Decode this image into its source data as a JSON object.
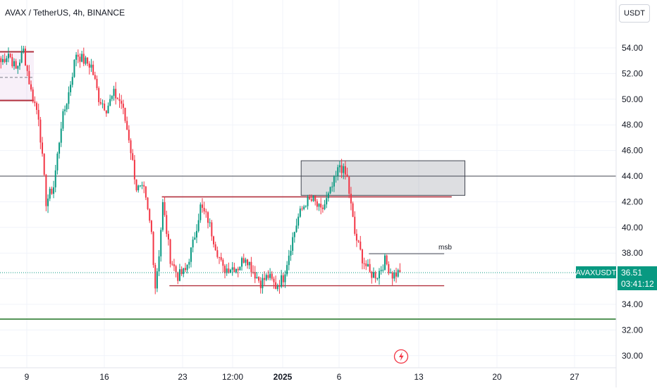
{
  "header": {
    "title": "AVAX / TetherUS, 4h, BINANCE",
    "currency_button": "USDT"
  },
  "price_tag": {
    "symbol": "AVAXUSDT",
    "price": "36.51",
    "countdown": "03:41:12",
    "color": "#089981"
  },
  "annotation": {
    "label": "msb"
  },
  "icons": {
    "event_marker": "lightning-bolt-icon"
  },
  "colors": {
    "up": "#089981",
    "down": "#f23645",
    "zone_line": "#b2323f",
    "horizontal": "#434651",
    "support": "#2e7d32",
    "grid": "#f0f3fa"
  },
  "chart_data": {
    "type": "candlestick",
    "symbol": "AVAXUSDT",
    "interval": "4h",
    "exchange": "BINANCE",
    "y_axis": {
      "range": [
        29.4,
        56.8
      ],
      "ticks": [
        "54.00",
        "52.00",
        "50.00",
        "48.00",
        "46.00",
        "44.00",
        "42.00",
        "40.00",
        "38.00",
        "36.00",
        "34.00",
        "32.00",
        "30.00"
      ]
    },
    "x_axis": {
      "tick_labels": [
        "9",
        "16",
        "23",
        "12:00",
        "2025",
        "6",
        "13",
        "20",
        "27"
      ]
    },
    "close_path": [
      [
        0,
        52.9
      ],
      [
        4,
        53.6
      ],
      [
        8,
        52.3
      ],
      [
        12,
        53.8
      ],
      [
        16,
        50.6
      ],
      [
        20,
        48.7
      ],
      [
        24,
        42.0
      ],
      [
        28,
        43.2
      ],
      [
        32,
        48.0
      ],
      [
        36,
        50.5
      ],
      [
        40,
        53.6
      ],
      [
        44,
        53.0
      ],
      [
        48,
        52.6
      ],
      [
        52,
        50.1
      ],
      [
        56,
        49.3
      ],
      [
        60,
        50.4
      ],
      [
        64,
        49.7
      ],
      [
        68,
        47.0
      ],
      [
        72,
        43.1
      ],
      [
        76,
        42.8
      ],
      [
        80,
        39.6
      ],
      [
        82,
        35.4
      ],
      [
        84,
        38.0
      ],
      [
        86,
        41.8
      ],
      [
        90,
        37.6
      ],
      [
        94,
        36.2
      ],
      [
        98,
        36.6
      ],
      [
        102,
        38.7
      ],
      [
        106,
        41.6
      ],
      [
        110,
        40.6
      ],
      [
        114,
        38.6
      ],
      [
        118,
        36.7
      ],
      [
        122,
        36.9
      ],
      [
        126,
        36.9
      ],
      [
        130,
        37.8
      ],
      [
        134,
        36.6
      ],
      [
        138,
        35.7
      ],
      [
        142,
        36.2
      ],
      [
        146,
        35.4
      ],
      [
        150,
        36.1
      ],
      [
        154,
        38.6
      ],
      [
        158,
        40.8
      ],
      [
        162,
        42.0
      ],
      [
        166,
        42.1
      ],
      [
        170,
        41.2
      ],
      [
        174,
        42.4
      ],
      [
        178,
        43.9
      ],
      [
        180,
        44.9
      ],
      [
        184,
        43.8
      ],
      [
        188,
        39.5
      ],
      [
        192,
        37.6
      ],
      [
        196,
        36.4
      ],
      [
        200,
        36.3
      ],
      [
        204,
        37.4
      ],
      [
        208,
        36.3
      ],
      [
        212,
        36.51
      ]
    ],
    "price_levels": [
      {
        "type": "line",
        "value": 44.0,
        "x_from": 0,
        "x_to": 328
      },
      {
        "type": "line",
        "value": 42.38,
        "x_from": 86,
        "x_to": 240
      },
      {
        "type": "line",
        "value": 35.45,
        "x_from": 90,
        "x_to": 236
      },
      {
        "type": "line",
        "value": 37.95,
        "x_from": 196,
        "x_to": 236,
        "label": "msb"
      },
      {
        "type": "line",
        "value": 32.85,
        "x_from": 0,
        "x_to": 328
      }
    ],
    "zones": [
      {
        "top": 53.7,
        "bottom": 49.9,
        "mid": 51.7,
        "x_from": 0,
        "x_to": 18
      },
      {
        "top": 45.2,
        "bottom": 42.5,
        "x_from": 160,
        "x_to": 247
      }
    ],
    "last_price": 36.51,
    "grid": true
  }
}
